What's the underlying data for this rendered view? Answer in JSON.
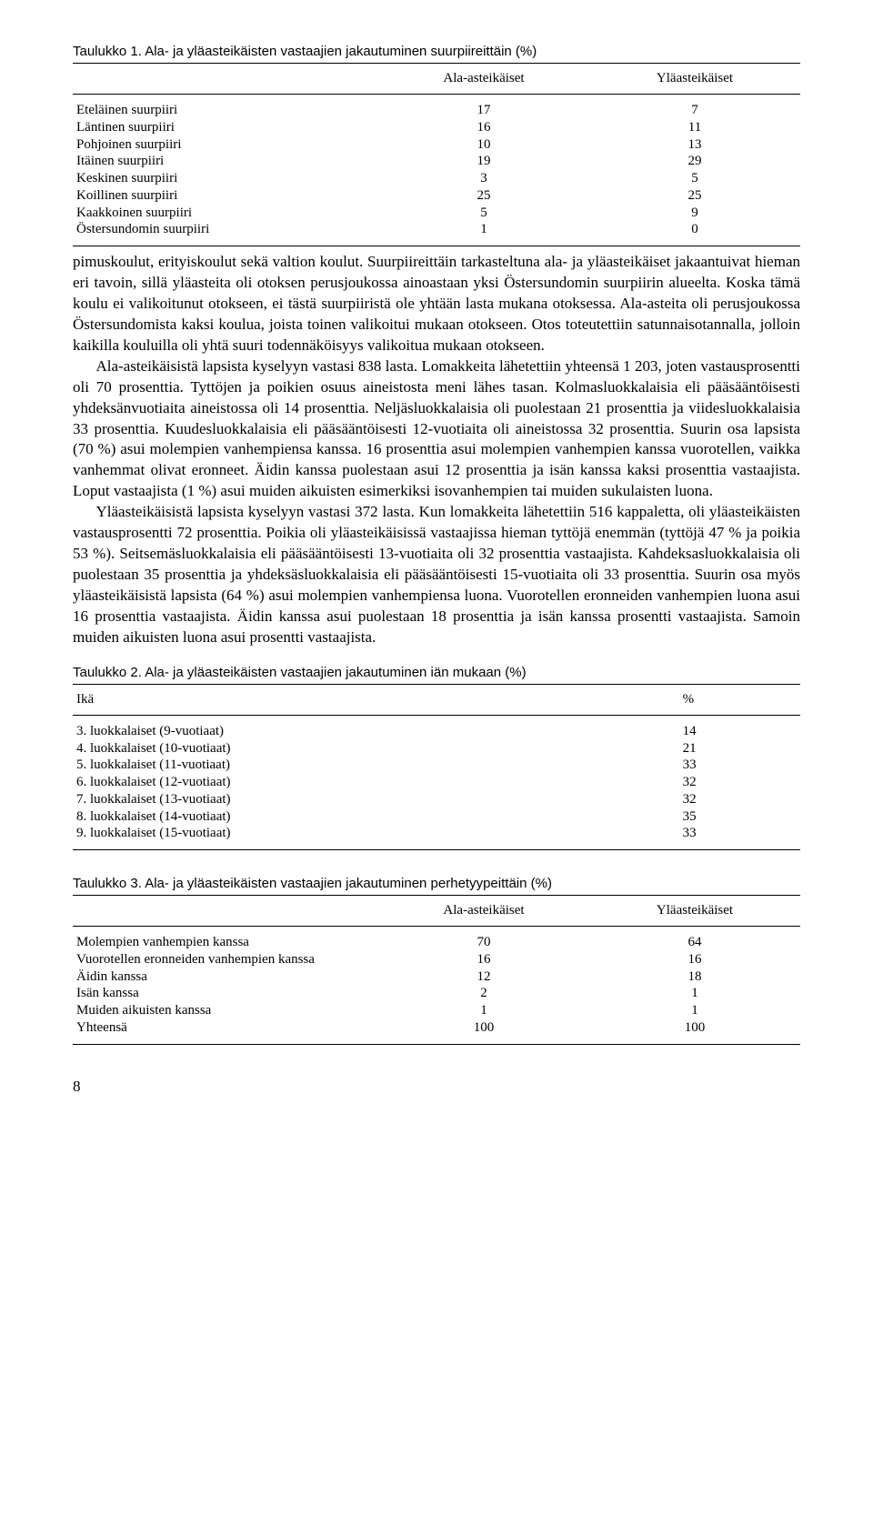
{
  "table1": {
    "title": "Taulukko 1. Ala- ja yläasteikäisten vastaajien jakautuminen suurpiireittäin (%)",
    "col1_header": "",
    "col2_header": "Ala-asteikäiset",
    "col3_header": "Yläasteikäiset",
    "rows": [
      {
        "label": "Eteläinen suurpiiri",
        "a": "17",
        "b": "7"
      },
      {
        "label": "Läntinen suurpiiri",
        "a": "16",
        "b": "11"
      },
      {
        "label": "Pohjoinen suurpiiri",
        "a": "10",
        "b": "13"
      },
      {
        "label": "Itäinen suurpiiri",
        "a": "19",
        "b": "29"
      },
      {
        "label": "Keskinen suurpiiri",
        "a": "3",
        "b": "5"
      },
      {
        "label": "Koillinen suurpiiri",
        "a": "25",
        "b": "25"
      },
      {
        "label": "Kaakkoinen suurpiiri",
        "a": "5",
        "b": "9"
      },
      {
        "label": "Östersundomin suurpiiri",
        "a": "1",
        "b": "0"
      }
    ]
  },
  "body": {
    "p1": "pimuskoulut, erityiskoulut sekä valtion koulut. Suurpiireittäin tarkasteltuna ala- ja yläasteikäiset jakaantuivat hieman eri tavoin, sillä yläasteita oli otoksen perusjoukossa ainoastaan yksi Östersundomin suurpiirin alueelta. Koska tämä koulu ei valikoitunut otokseen, ei tästä suurpiiristä ole yhtään lasta mukana otoksessa. Ala-asteita oli perusjoukossa Östersundomista kaksi koulua, joista toinen valikoitui mukaan otokseen. Otos toteutettiin satunnaisotannalla, jolloin kaikilla kouluilla oli yhtä suuri todennäköisyys valikoitua mukaan otokseen.",
    "p2": "Ala-asteikäisistä lapsista kyselyyn vastasi 838 lasta. Lomakkeita lähetettiin yhteensä 1 203, joten vastausprosentti oli 70 prosenttia. Tyttöjen ja poikien osuus aineistosta meni lähes tasan. Kolmasluokkalaisia eli pääsääntöisesti yhdeksänvuotiaita aineistossa oli 14 prosenttia. Neljäsluokkalaisia oli puolestaan 21 prosenttia ja viidesluokkalaisia 33 prosenttia. Kuudesluokkalaisia eli pääsääntöisesti 12-vuotiaita oli aineistossa 32 prosenttia. Suurin osa lapsista (70 %) asui molempien vanhempiensa kanssa. 16 prosenttia asui molempien vanhempien kanssa vuorotellen, vaikka vanhemmat olivat eronneet. Äidin kanssa puolestaan asui 12 prosenttia ja isän kanssa kaksi prosenttia vastaajista. Loput vastaajista (1 %) asui muiden aikuisten esimerkiksi isovanhempien tai muiden sukulaisten luona.",
    "p3": "Yläasteikäisistä lapsista kyselyyn vastasi 372 lasta. Kun lomakkeita lähetettiin 516 kappaletta, oli yläasteikäisten vastausprosentti 72 prosenttia. Poikia oli yläasteikäisissä vastaajissa hieman tyttöjä enemmän (tyttöjä 47 % ja poikia 53 %). Seitsemäsluokkalaisia eli pääsääntöisesti 13-vuotiaita oli 32 prosenttia vastaajista. Kahdeksasluokkalaisia oli puolestaan 35 prosenttia ja yhdeksäsluokkalaisia eli pääsääntöisesti 15-vuotiaita oli 33 prosenttia. Suurin osa myös yläasteikäisistä lapsista (64 %) asui molempien vanhempiensa luona. Vuorotellen eronneiden vanhempien luona asui 16 prosenttia vastaajista. Äidin kanssa asui puolestaan 18 prosenttia ja isän kanssa prosentti vastaajista. Samoin muiden aikuisten luona asui prosentti vastaajista."
  },
  "table2": {
    "title": "Taulukko 2. Ala- ja yläasteikäisten vastaajien jakautuminen iän mukaan (%)",
    "col1_header": "Ikä",
    "col2_header": "%",
    "rows": [
      {
        "label": "3. luokkalaiset (9-vuotiaat)",
        "v": "14"
      },
      {
        "label": "4. luokkalaiset (10-vuotiaat)",
        "v": "21"
      },
      {
        "label": "5. luokkalaiset (11-vuotiaat)",
        "v": "33"
      },
      {
        "label": "6. luokkalaiset (12-vuotiaat)",
        "v": "32"
      },
      {
        "label": "7. luokkalaiset (13-vuotiaat)",
        "v": "32"
      },
      {
        "label": "8. luokkalaiset (14-vuotiaat)",
        "v": "35"
      },
      {
        "label": "9. luokkalaiset (15-vuotiaat)",
        "v": "33"
      }
    ]
  },
  "table3": {
    "title": "Taulukko 3. Ala- ja yläasteikäisten vastaajien jakautuminen perhetyypeittäin (%)",
    "col1_header": "",
    "col2_header": "Ala-asteikäiset",
    "col3_header": "Yläasteikäiset",
    "rows": [
      {
        "label": "Molempien vanhempien kanssa",
        "a": "70",
        "b": "64"
      },
      {
        "label": "Vuorotellen eronneiden vanhempien kanssa",
        "a": "16",
        "b": "16"
      },
      {
        "label": "Äidin kanssa",
        "a": "12",
        "b": "18"
      },
      {
        "label": "Isän kanssa",
        "a": "2",
        "b": "1"
      },
      {
        "label": "Muiden aikuisten kanssa",
        "a": "1",
        "b": "1"
      },
      {
        "label": "Yhteensä",
        "a": "100",
        "b": "100"
      }
    ]
  },
  "pagenum": "8"
}
